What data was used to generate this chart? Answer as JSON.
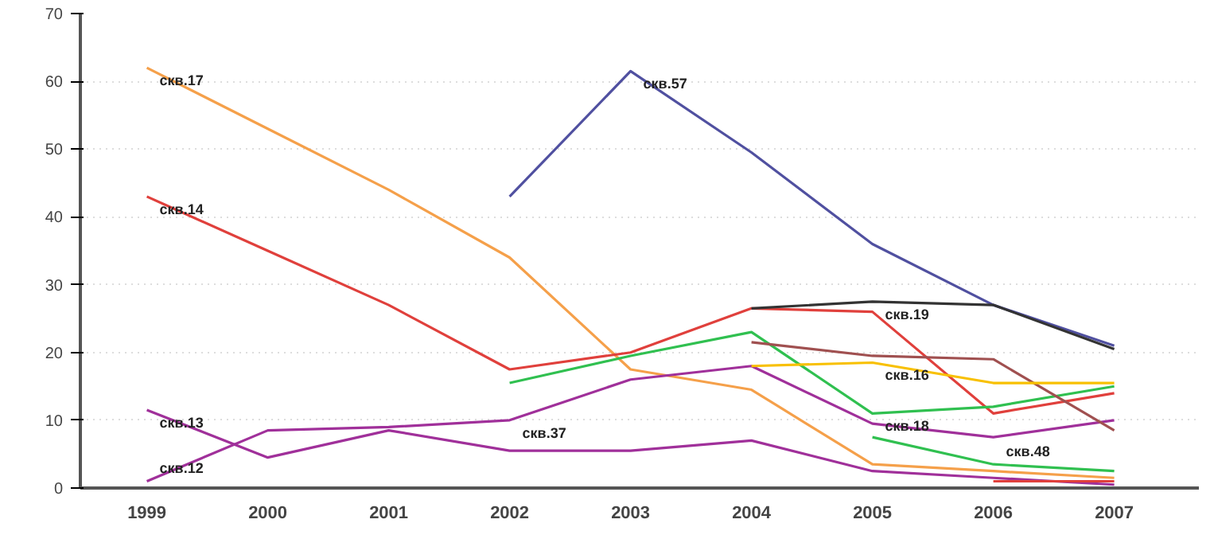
{
  "chart_data": {
    "type": "line",
    "categories": [
      "1999",
      "2000",
      "2001",
      "2002",
      "2003",
      "2004",
      "2005",
      "2006",
      "2007"
    ],
    "ylim": [
      0,
      70
    ],
    "yticks": [
      0,
      10,
      20,
      30,
      40,
      50,
      60,
      70
    ],
    "grid": "y",
    "marker": "none",
    "line_style": "solid",
    "series": [
      {
        "color": "#f5a04a",
        "values": [
          62,
          53,
          44,
          34,
          17.5,
          14.5,
          3.5,
          2.5,
          1.5
        ]
      },
      {
        "color": "#e0403c",
        "values": [
          43,
          35,
          27,
          17.5,
          20,
          26.5,
          26,
          11,
          14
        ]
      },
      {
        "color": "#5050a0",
        "values": [
          null,
          null,
          null,
          43,
          61.5,
          49.5,
          36,
          27,
          21
        ]
      },
      {
        "color": "#333333",
        "values": [
          null,
          null,
          null,
          null,
          null,
          26.5,
          27.5,
          27,
          20.5
        ]
      },
      {
        "color": "#30c050",
        "values": [
          null,
          null,
          null,
          15.5,
          19.5,
          23,
          11,
          12,
          15
        ]
      },
      {
        "color": "#a0309a",
        "values": [
          1,
          8.5,
          9,
          10,
          16,
          18,
          9.5,
          7.5,
          10
        ]
      },
      {
        "color": "#a0309a",
        "values": [
          11.5,
          4.5,
          8.5,
          5.5,
          5.5,
          7,
          2.5,
          1.5,
          0.5
        ]
      },
      {
        "color": "#a05050",
        "values": [
          null,
          null,
          null,
          null,
          null,
          21.5,
          19.5,
          19,
          8.5
        ]
      },
      {
        "color": "#f8c000",
        "values": [
          null,
          null,
          null,
          null,
          null,
          18,
          18.5,
          15.5,
          15.5
        ]
      },
      {
        "color": "#30c050",
        "values": [
          null,
          null,
          null,
          null,
          null,
          null,
          7.5,
          3.5,
          2.5
        ]
      },
      {
        "color": "#e0403c",
        "values": [
          null,
          null,
          null,
          null,
          null,
          null,
          null,
          1,
          1
        ]
      }
    ],
    "annotations": [
      {
        "text": "скв.17",
        "x": "1999",
        "y": 62
      },
      {
        "text": "скв.14",
        "x": "1999",
        "y": 43
      },
      {
        "text": "скв.13",
        "x": "1999",
        "y": 11.5
      },
      {
        "text": "скв.12",
        "x": "1999",
        "y": 1
      },
      {
        "text": "скв.57",
        "x": "2003",
        "y": 61.5
      },
      {
        "text": "скв.37",
        "x": "2002",
        "y": 10
      },
      {
        "text": "скв.19",
        "x": "2005",
        "y": 27.5
      },
      {
        "text": "скв.16",
        "x": "2005",
        "y": 18.5
      },
      {
        "text": "скв.18",
        "x": "2005",
        "y": 11
      },
      {
        "text": "скв.48",
        "x": "2006",
        "y": 3.5
      }
    ]
  }
}
